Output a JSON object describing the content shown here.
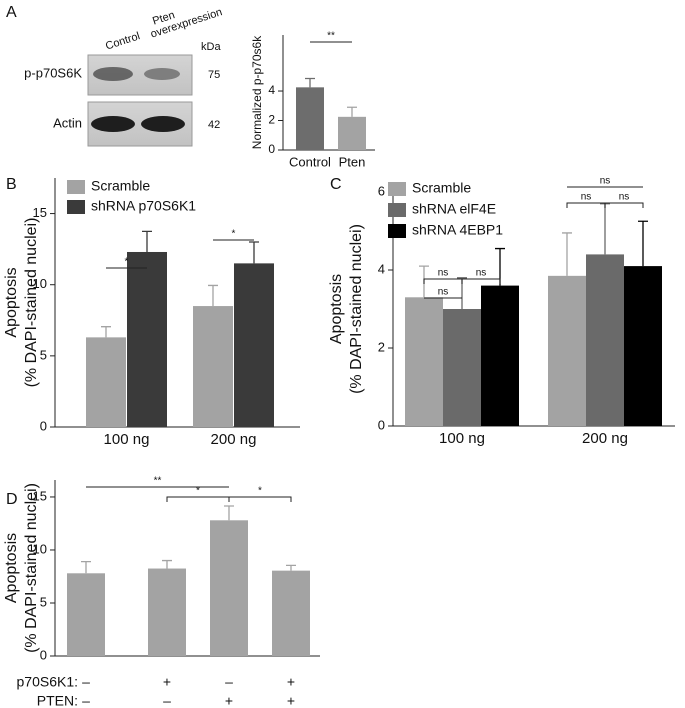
{
  "panel_labels": [
    "A",
    "B",
    "C",
    "D"
  ],
  "blot": {
    "lanes": [
      [
        "Control"
      ],
      [
        "Pten",
        "overexpression"
      ]
    ],
    "unit": "kDa",
    "rows": [
      {
        "label": "p-p70S6K",
        "kda": 75
      },
      {
        "label": "Actin",
        "kda": 42
      }
    ]
  },
  "chart_data": [
    {
      "type": "bar",
      "ylabel": [
        "Normalized p-p70s6k"
      ],
      "categories": [
        "Control",
        "Pten"
      ],
      "values": [
        4.25,
        2.25
      ],
      "errors": [
        0.6,
        0.65
      ],
      "colors": [
        "#6d6d6d",
        "#a3a3a3"
      ],
      "ylim": [
        0,
        7.8
      ],
      "yticks": [
        0,
        2,
        4
      ],
      "annotations": [
        "**"
      ]
    },
    {
      "type": "bar",
      "ylabel": [
        "Apoptosis",
        "(% DAPI-stained nuclei)"
      ],
      "categories": [
        "100 ng",
        "200 ng"
      ],
      "series": [
        {
          "name": "Scramble",
          "color": "#a3a3a3",
          "values": [
            6.3,
            8.5
          ],
          "errors": [
            0.75,
            1.45
          ]
        },
        {
          "name": "shRNA p70S6K1",
          "color": "#3a3a3a",
          "values": [
            12.3,
            11.5
          ],
          "errors": [
            1.45,
            1.5
          ]
        }
      ],
      "ylim": [
        0,
        17.5
      ],
      "yticks": [
        0,
        5,
        10,
        15
      ],
      "legend": "upper left",
      "annotations": [
        "*",
        "*"
      ]
    },
    {
      "type": "bar",
      "ylabel": [
        "Apoptosis",
        "(% DAPI-stained nuclei)"
      ],
      "categories": [
        "100 ng",
        "200 ng"
      ],
      "series": [
        {
          "name": "Scramble",
          "color": "#a3a3a3",
          "values": [
            3.3,
            3.85
          ],
          "errors": [
            0.8,
            1.1
          ]
        },
        {
          "name": "shRNA elF4E",
          "color": "#6a6a6a",
          "values": [
            3.0,
            4.4
          ],
          "errors": [
            0.8,
            1.3
          ]
        },
        {
          "name": "shRNA 4EBP1",
          "color": "#000000",
          "values": [
            3.6,
            4.1
          ],
          "errors": [
            0.95,
            1.15
          ]
        }
      ],
      "ylim": [
        0,
        6
      ],
      "yticks": [
        0,
        2,
        4,
        6
      ],
      "legend": "upper left",
      "annotations": [
        "ns",
        "ns",
        "ns",
        "ns",
        "ns",
        "ns"
      ]
    },
    {
      "type": "bar",
      "ylabel": [
        "Apoptosis",
        "(% DAPI-stained nuclei)"
      ],
      "conditions": [
        {
          "name": "p70S6K1:",
          "levels": [
            "–",
            "+",
            "–",
            "+"
          ]
        },
        {
          "name": "PTEN:",
          "levels": [
            "–",
            "–",
            "+",
            "+"
          ]
        }
      ],
      "values": [
        7.8,
        8.25,
        12.8,
        8.05
      ],
      "errors": [
        1.1,
        0.75,
        1.35,
        0.5
      ],
      "color": "#a3a3a3",
      "ylim": [
        0,
        16.6
      ],
      "yticks": [
        0,
        5,
        10,
        15
      ],
      "annotations": [
        "**",
        "*",
        "*"
      ]
    }
  ]
}
